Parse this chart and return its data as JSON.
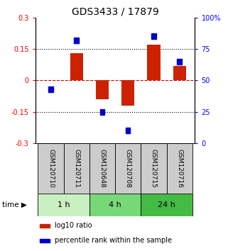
{
  "title": "GDS3433 / 17879",
  "samples": [
    "GSM120710",
    "GSM120711",
    "GSM120648",
    "GSM120708",
    "GSM120715",
    "GSM120716"
  ],
  "log10_ratio": [
    0.002,
    0.13,
    -0.09,
    -0.12,
    0.17,
    0.07
  ],
  "percentile_rank": [
    43,
    82,
    25,
    10,
    85,
    65
  ],
  "time_groups": [
    {
      "label": "1 h",
      "start": 0,
      "end": 2,
      "color": "#c8f0c0"
    },
    {
      "label": "4 h",
      "start": 2,
      "end": 4,
      "color": "#78d878"
    },
    {
      "label": "24 h",
      "start": 4,
      "end": 6,
      "color": "#44bb44"
    }
  ],
  "ylim_left": [
    -0.3,
    0.3
  ],
  "ylim_right": [
    0,
    100
  ],
  "yticks_left": [
    -0.3,
    -0.15,
    0,
    0.15,
    0.3
  ],
  "yticks_right": [
    0,
    25,
    50,
    75,
    100
  ],
  "ytick_labels_left": [
    "-0.3",
    "-0.15",
    "0",
    "0.15",
    "0.3"
  ],
  "ytick_labels_right": [
    "0",
    "25",
    "50",
    "75",
    "100%"
  ],
  "bar_color": "#cc2200",
  "square_color": "#0000cc",
  "hline_color": "#cc0000",
  "dotted_color": "#000000",
  "bg_color": "#ffffff",
  "sample_box_color": "#cccccc",
  "title_fontsize": 10,
  "tick_fontsize": 7,
  "legend_fontsize": 7,
  "label_fontsize": 6.5
}
